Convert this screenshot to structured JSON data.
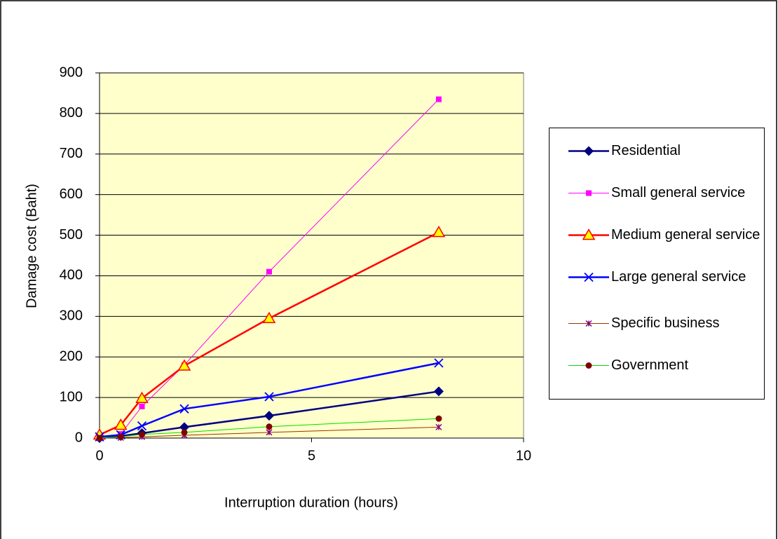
{
  "chart_data": {
    "type": "line",
    "x_label": "Interruption duration (hours)",
    "y_label": "Damage cost (Baht)",
    "x": [
      0,
      0.5,
      1,
      2,
      4,
      8
    ],
    "xlim": [
      0,
      10
    ],
    "xticks": [
      0,
      5,
      10
    ],
    "ylim": [
      0,
      900
    ],
    "yticks": [
      0,
      100,
      200,
      300,
      400,
      500,
      600,
      700,
      800,
      900
    ],
    "grid": true,
    "plot_background": "#ffffcc",
    "legend": "right",
    "series": [
      {
        "name": "Residential",
        "color": "#000080",
        "marker": "diamond",
        "marker_color": "#000080",
        "line_width": 2.5,
        "values": [
          0,
          5,
          12,
          27,
          55,
          115
        ]
      },
      {
        "name": "Small general service",
        "color": "#ff00ff",
        "marker": "square",
        "marker_color": "#ff00ff",
        "line_width": 1,
        "values": [
          0,
          10,
          78,
          180,
          410,
          835
        ]
      },
      {
        "name": "Medium general service",
        "color": "#ff0000",
        "marker": "triangle",
        "marker_color": "#ffff00",
        "line_width": 2.5,
        "values": [
          8,
          32,
          98,
          178,
          295,
          507
        ]
      },
      {
        "name": "Large general service",
        "color": "#0000ff",
        "marker": "x",
        "marker_color": "#0000ff",
        "line_width": 2.5,
        "values": [
          3,
          8,
          30,
          72,
          102,
          185
        ]
      },
      {
        "name": "Specific business",
        "color": "#993300",
        "marker": "star",
        "marker_color": "#800080",
        "line_width": 1,
        "values": [
          0,
          1,
          3,
          7,
          14,
          27
        ]
      },
      {
        "name": "Government",
        "color": "#00dd00",
        "marker": "circle",
        "marker_color": "#800000",
        "line_width": 1,
        "values": [
          0,
          3,
          9,
          14,
          28,
          48
        ]
      }
    ]
  }
}
